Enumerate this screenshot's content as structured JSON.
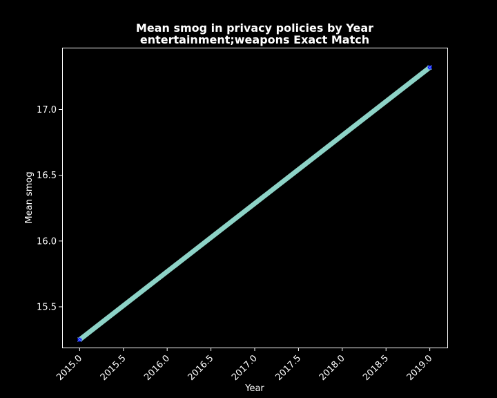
{
  "chart_data": {
    "type": "line",
    "title": "Mean smog in privacy policies by Year",
    "subtitle": "entertainment;weapons Exact Match",
    "xlabel": "Year",
    "ylabel": "Mean smog",
    "xlim": [
      2014.8,
      2019.2
    ],
    "ylim": [
      15.19,
      17.47
    ],
    "x_ticks": [
      "2015.0",
      "2015.5",
      "2016.0",
      "2016.5",
      "2017.0",
      "2017.5",
      "2018.0",
      "2018.5",
      "2019.0"
    ],
    "y_ticks": [
      "15.5",
      "16.0",
      "16.5",
      "17.0"
    ],
    "grid": false,
    "series": [
      {
        "name": "Mean smog",
        "x": [
          2015.0,
          2019.0
        ],
        "y": [
          15.25,
          17.32
        ]
      }
    ],
    "colors": {
      "background": "#000000",
      "axes": "#ffffff",
      "text": "#ffffff",
      "line": "#8dd3c7",
      "marker": "#0000ff"
    }
  }
}
